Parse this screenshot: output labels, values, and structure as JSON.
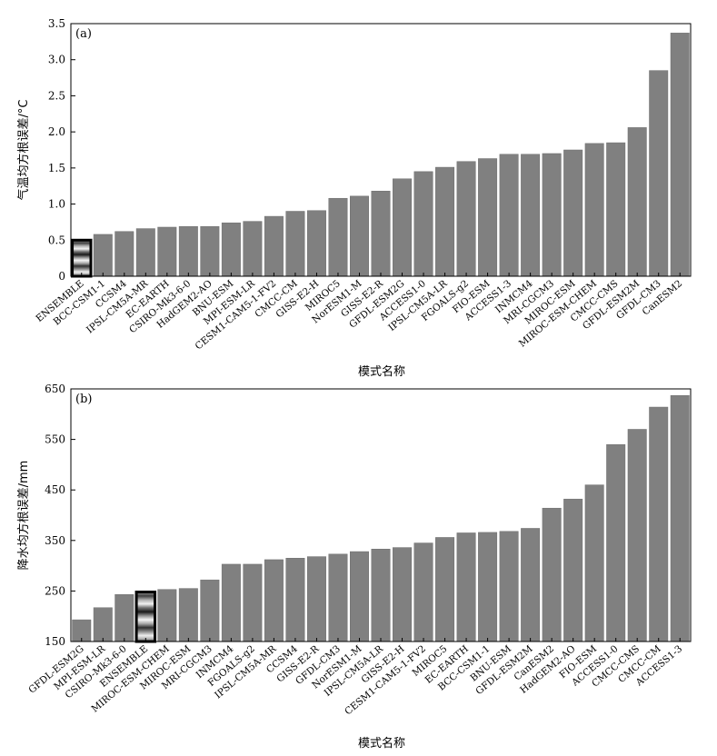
{
  "colors": {
    "bar": "#808080",
    "bar_stroke": "#6e6e6e",
    "axis": "#000000",
    "highlight_frame": "#000000"
  },
  "chart_data": [
    {
      "type": "bar",
      "panel_label": "(a)",
      "xlabel": "模式名称",
      "ylabel": "气温均方根误差/°C",
      "ylim": [
        0,
        3.5
      ],
      "yticks": [
        "0",
        "0.5",
        "1.0",
        "1.5",
        "2.0",
        "2.5",
        "3.0",
        "3.5"
      ],
      "highlight": "ENSEMBLE",
      "categories": [
        "ENSEMBLE",
        "BCC-CSM1-1",
        "CCSM4",
        "IPSL-CM5A-MR",
        "EC-EARTH",
        "CSIRO-Mk3-6-0",
        "HadGEM2-AO",
        "BNU-ESM",
        "MPI-ESM-LR",
        "CESM1-CAM5-1-FV2",
        "CMCC-CM",
        "GISS-E2-H",
        "MIROC5",
        "NorESM1-M",
        "GISS-E2-R",
        "GFDL-ESM2G",
        "ACCESS1-0",
        "IPSL-CM5A-LR",
        "FGOALS-g2",
        "FIO-ESM",
        "ACCESS1-3",
        "INMCM4",
        "MRI-CGCM3",
        "MIROC-ESM",
        "MIROC-ESM-CHEM",
        "CMCC-CMS",
        "GFDL-ESM2M",
        "GFDL-CM3",
        "CanESM2"
      ],
      "values": [
        0.5,
        0.58,
        0.62,
        0.66,
        0.68,
        0.69,
        0.69,
        0.74,
        0.76,
        0.83,
        0.9,
        0.91,
        1.08,
        1.11,
        1.18,
        1.35,
        1.45,
        1.51,
        1.59,
        1.63,
        1.69,
        1.69,
        1.7,
        1.75,
        1.84,
        1.85,
        2.06,
        2.85,
        3.37
      ]
    },
    {
      "type": "bar",
      "panel_label": "(b)",
      "xlabel": "模式名称",
      "ylabel": "降水均方根误差/mm",
      "ylim": [
        150,
        650
      ],
      "yticks": [
        "150",
        "250",
        "350",
        "450",
        "550",
        "650"
      ],
      "highlight": "ENSEMBLE",
      "categories": [
        "GFDL-ESM2G",
        "MPI-ESM-LR",
        "CSIRO-Mk3-6-0",
        "ENSEMBLE",
        "MIROC-ESM-CHEM",
        "MIROC-ESM",
        "MRI-CGCM3",
        "INMCM4",
        "FGOALS-g2",
        "IPSL-CM5A-MR",
        "CCSM4",
        "GISS-E2-R",
        "GFDL-CM3",
        "NorESM1-M",
        "IPSL-CM5A-LR",
        "GISS-E2-H",
        "CESM1-CAM5-1-FV2",
        "MIROC5",
        "EC-EARTH",
        "BCC-CSM1-1",
        "BNU-ESM",
        "GFDL-ESM2M",
        "CanESM2",
        "HadGEM2-AO",
        "FIO-ESM",
        "ACCESS1-0",
        "CMCC-CMS",
        "CMCC-CM",
        "ACCESS1-3"
      ],
      "values": [
        193,
        217,
        243,
        248,
        253,
        255,
        272,
        303,
        303,
        312,
        315,
        318,
        323,
        328,
        333,
        336,
        345,
        356,
        365,
        366,
        368,
        374,
        414,
        432,
        460,
        540,
        570,
        614,
        637
      ]
    }
  ]
}
